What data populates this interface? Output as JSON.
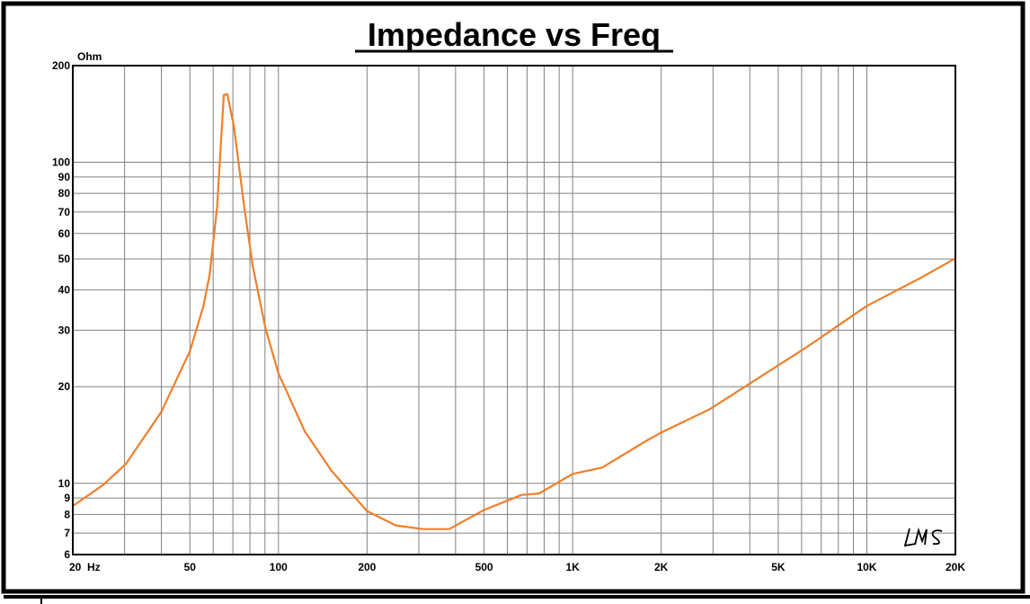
{
  "chart_data": {
    "type": "line",
    "title": "Impedance vs Freq",
    "ylabel": "Ohm",
    "xlabel": "",
    "x_unit_label": "Hz",
    "x_scale": "log",
    "y_scale": "log",
    "xlim": [
      20,
      20000
    ],
    "ylim": [
      6,
      200
    ],
    "grid": true,
    "line_color": "#f07f2a",
    "x_tick_labels": [
      {
        "value": 20,
        "label": "20  Hz"
      },
      {
        "value": 50,
        "label": "50"
      },
      {
        "value": 100,
        "label": "100"
      },
      {
        "value": 200,
        "label": "200"
      },
      {
        "value": 500,
        "label": "500"
      },
      {
        "value": 1000,
        "label": "1K"
      },
      {
        "value": 2000,
        "label": "2K"
      },
      {
        "value": 5000,
        "label": "5K"
      },
      {
        "value": 10000,
        "label": "10K"
      },
      {
        "value": 20000,
        "label": "20K"
      }
    ],
    "y_tick_labels": [
      {
        "value": 200,
        "label": "200"
      },
      {
        "value": 100,
        "label": "100"
      },
      {
        "value": 90,
        "label": "90"
      },
      {
        "value": 80,
        "label": "80"
      },
      {
        "value": 70,
        "label": "70"
      },
      {
        "value": 60,
        "label": "60"
      },
      {
        "value": 50,
        "label": "50"
      },
      {
        "value": 40,
        "label": "40"
      },
      {
        "value": 30,
        "label": "30"
      },
      {
        "value": 20,
        "label": "20"
      },
      {
        "value": 10,
        "label": "10"
      },
      {
        "value": 9,
        "label": "9"
      },
      {
        "value": 8,
        "label": "8"
      },
      {
        "value": 7,
        "label": "7"
      },
      {
        "value": 6,
        "label": "6"
      }
    ],
    "series": [
      {
        "x": [
          20,
          25.4,
          30.3,
          40,
          50,
          55.6,
          58.4,
          61.9,
          65.2,
          67,
          70.6,
          76.5,
          81.7,
          90.4,
          100,
          123,
          152,
          200,
          250,
          310,
          380,
          500,
          670,
          770,
          1000,
          1260,
          1790,
          2000,
          2920,
          4780,
          6300,
          10000,
          15000,
          20000
        ],
        "y": [
          8.5,
          9.9,
          11.5,
          16.7,
          25.8,
          35.7,
          44.7,
          72.7,
          162,
          163,
          129,
          72.7,
          47.7,
          30.4,
          22.0,
          14.5,
          10.9,
          8.2,
          7.4,
          7.2,
          7.2,
          8.26,
          9.2,
          9.3,
          10.7,
          11.2,
          13.6,
          14.4,
          17.0,
          22.7,
          26.7,
          35.7,
          43.3,
          50.2
        ]
      }
    ]
  },
  "watermark": "LMS"
}
